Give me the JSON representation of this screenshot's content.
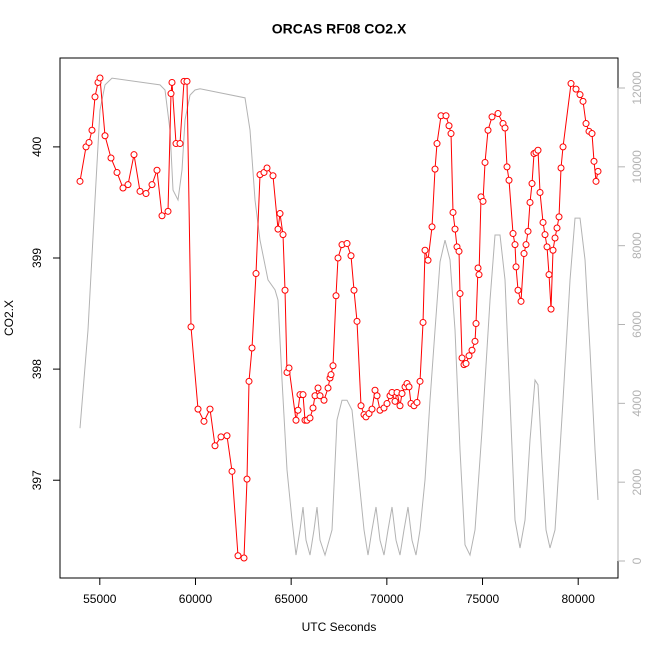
{
  "chart_data": {
    "type": "line",
    "title": "ORCAS RF08 CO2.X",
    "xlabel": "UTC Seconds",
    "ylabel": "CO2.X",
    "xlim": [
      52920,
      82080
    ],
    "xticks": [
      55000,
      60000,
      65000,
      70000,
      75000,
      80000
    ],
    "ylim": [
      396.12,
      400.8
    ],
    "yticks": [
      397,
      398,
      399,
      400
    ],
    "y2lim": [
      -431,
      12761
    ],
    "y2ticks": [
      0,
      2000,
      4000,
      6000,
      8000,
      10000,
      12000
    ],
    "series": [
      {
        "color": "#b3b3b3",
        "axis": "y2",
        "markers": false,
        "x": [
          53965,
          54383,
          54749,
          55010,
          55272,
          55638,
          58146,
          58407,
          58669,
          58826,
          59087,
          59296,
          59453,
          59714,
          59975,
          60236,
          62588,
          62850,
          63111,
          63372,
          63790,
          64156,
          64313,
          64522,
          64783,
          65044,
          65253,
          65462,
          65619,
          65776,
          65985,
          66194,
          66351,
          66508,
          66769,
          67135,
          67396,
          67657,
          67919,
          68180,
          68494,
          68807,
          69016,
          69225,
          69434,
          69643,
          69852,
          70061,
          70270,
          70479,
          70688,
          70897,
          71106,
          71315,
          71524,
          71734,
          71995,
          72256,
          72518,
          72779,
          73040,
          73301,
          73563,
          73824,
          74085,
          74346,
          74608,
          74974,
          75392,
          75653,
          75914,
          76176,
          76437,
          76698,
          76960,
          77221,
          77482,
          77744,
          77900,
          78109,
          78318,
          78527,
          78789,
          79207,
          79573,
          79834,
          80095,
          80357,
          80618,
          80879,
          81035
        ],
        "values": [
          3370,
          5860,
          9160,
          11440,
          12080,
          12250,
          12080,
          11950,
          10930,
          9410,
          9160,
          9920,
          11190,
          11820,
          11950,
          11980,
          11750,
          10930,
          9160,
          8140,
          7130,
          6880,
          6620,
          4590,
          2310,
          1040,
          150,
          790,
          1370,
          530,
          150,
          790,
          1370,
          530,
          150,
          790,
          3580,
          4080,
          4080,
          3830,
          2310,
          790,
          150,
          790,
          1370,
          530,
          150,
          790,
          1370,
          530,
          150,
          790,
          1370,
          530,
          150,
          790,
          2060,
          4080,
          5860,
          7590,
          8140,
          7640,
          5860,
          2820,
          410,
          150,
          790,
          3320,
          6620,
          8270,
          8270,
          7130,
          4080,
          1040,
          330,
          1040,
          3070,
          4590,
          4470,
          2560,
          790,
          330,
          790,
          4080,
          7130,
          8700,
          8700,
          7640,
          5350,
          2820,
          1550
        ]
      },
      {
        "color": "#ff0000",
        "markers": true,
        "x": [
          53965,
          54279,
          54436,
          54592,
          54749,
          54906,
          55010,
          55272,
          55585,
          55899,
          56212,
          56474,
          56787,
          57101,
          57414,
          57728,
          57989,
          58251,
          58564,
          58721,
          58773,
          58982,
          59191,
          59400,
          59557,
          59766,
          60132,
          60445,
          60759,
          61020,
          61334,
          61647,
          61909,
          62222,
          62536,
          62693,
          62797,
          62954,
          63163,
          63372,
          63581,
          63738,
          64051,
          64313,
          64417,
          64574,
          64679,
          64783,
          64888,
          65253,
          65358,
          65462,
          65619,
          65724,
          65828,
          65985,
          66142,
          66246,
          66403,
          66508,
          66717,
          66926,
          67030,
          67082,
          67187,
          67344,
          67448,
          67657,
          67919,
          68128,
          68284,
          68441,
          68650,
          68807,
          68912,
          69069,
          69225,
          69382,
          69487,
          69643,
          69852,
          70009,
          70166,
          70270,
          70427,
          70532,
          70688,
          70793,
          70950,
          71054,
          71159,
          71263,
          71420,
          71577,
          71734,
          71891,
          71995,
          72152,
          72361,
          72518,
          72622,
          72831,
          73092,
          73249,
          73354,
          73458,
          73563,
          73667,
          73772,
          73824,
          73929,
          74033,
          74138,
          74295,
          74451,
          74608,
          74660,
          74765,
          74817,
          74921,
          75026,
          75131,
          75287,
          75496,
          75810,
          76071,
          76176,
          76280,
          76385,
          76594,
          76698,
          76751,
          76855,
          77012,
          77169,
          77273,
          77378,
          77482,
          77587,
          77691,
          77796,
          77900,
          78005,
          78162,
          78266,
          78371,
          78475,
          78580,
          78684,
          78789,
          78893,
          78998,
          79102,
          79207,
          79625,
          79886,
          80095,
          80252,
          80409,
          80565,
          80722,
          80826,
          80931,
          81035
        ],
        "values": [
          399.69,
          400.0,
          400.04,
          400.15,
          400.45,
          400.58,
          400.62,
          400.1,
          399.9,
          399.77,
          399.63,
          399.66,
          399.93,
          399.6,
          399.58,
          399.66,
          399.79,
          399.38,
          399.42,
          400.48,
          400.58,
          400.03,
          400.03,
          400.59,
          400.59,
          398.38,
          397.64,
          397.53,
          397.64,
          397.31,
          397.39,
          397.4,
          397.08,
          396.32,
          396.3,
          397.01,
          397.89,
          398.19,
          398.86,
          399.75,
          399.77,
          399.81,
          399.74,
          399.26,
          399.4,
          399.21,
          398.71,
          397.97,
          398.01,
          397.54,
          397.63,
          397.77,
          397.77,
          397.54,
          397.54,
          397.56,
          397.65,
          397.76,
          397.83,
          397.76,
          397.72,
          397.83,
          397.92,
          397.95,
          398.03,
          398.66,
          399.0,
          399.12,
          399.13,
          399.02,
          398.71,
          398.43,
          397.67,
          397.59,
          397.57,
          397.6,
          397.64,
          397.81,
          397.76,
          397.63,
          397.65,
          397.69,
          397.76,
          397.79,
          397.71,
          397.79,
          397.67,
          397.78,
          397.84,
          397.87,
          397.84,
          397.69,
          397.67,
          397.7,
          397.89,
          398.42,
          399.07,
          398.98,
          399.28,
          399.8,
          400.03,
          400.28,
          400.28,
          400.19,
          400.12,
          399.41,
          399.26,
          399.1,
          399.06,
          398.68,
          398.1,
          398.04,
          398.05,
          398.12,
          398.17,
          398.25,
          398.41,
          398.91,
          398.85,
          399.55,
          399.51,
          399.86,
          400.15,
          400.27,
          400.3,
          400.21,
          400.17,
          399.82,
          399.7,
          399.22,
          399.12,
          398.92,
          398.71,
          398.61,
          399.04,
          399.12,
          399.24,
          399.5,
          399.67,
          399.94,
          399.95,
          399.97,
          399.59,
          399.32,
          399.21,
          399.1,
          398.85,
          398.54,
          399.07,
          399.18,
          399.27,
          399.37,
          399.81,
          400.0,
          400.57,
          400.52,
          400.47,
          400.41,
          400.21,
          400.14,
          400.12,
          399.87,
          399.69,
          399.78
        ]
      }
    ]
  }
}
